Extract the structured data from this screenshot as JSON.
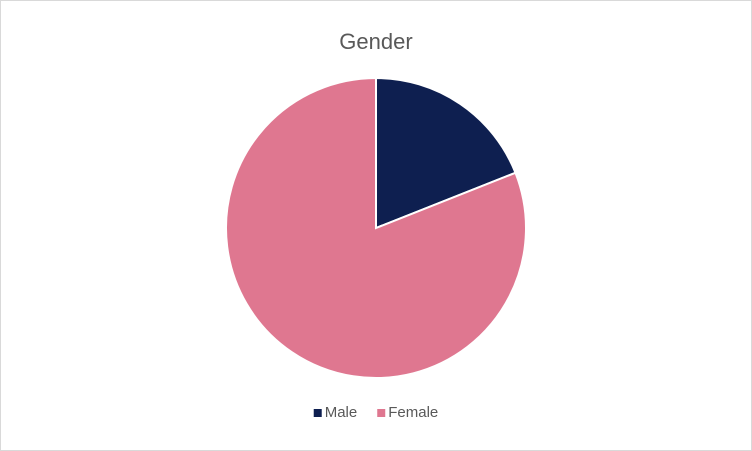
{
  "chart_data": {
    "type": "pie",
    "title": "Gender",
    "categories": [
      "Male",
      "Female"
    ],
    "values": [
      19,
      81
    ],
    "colors": [
      "#0e1f50",
      "#df7790"
    ],
    "legend": "bottom"
  }
}
